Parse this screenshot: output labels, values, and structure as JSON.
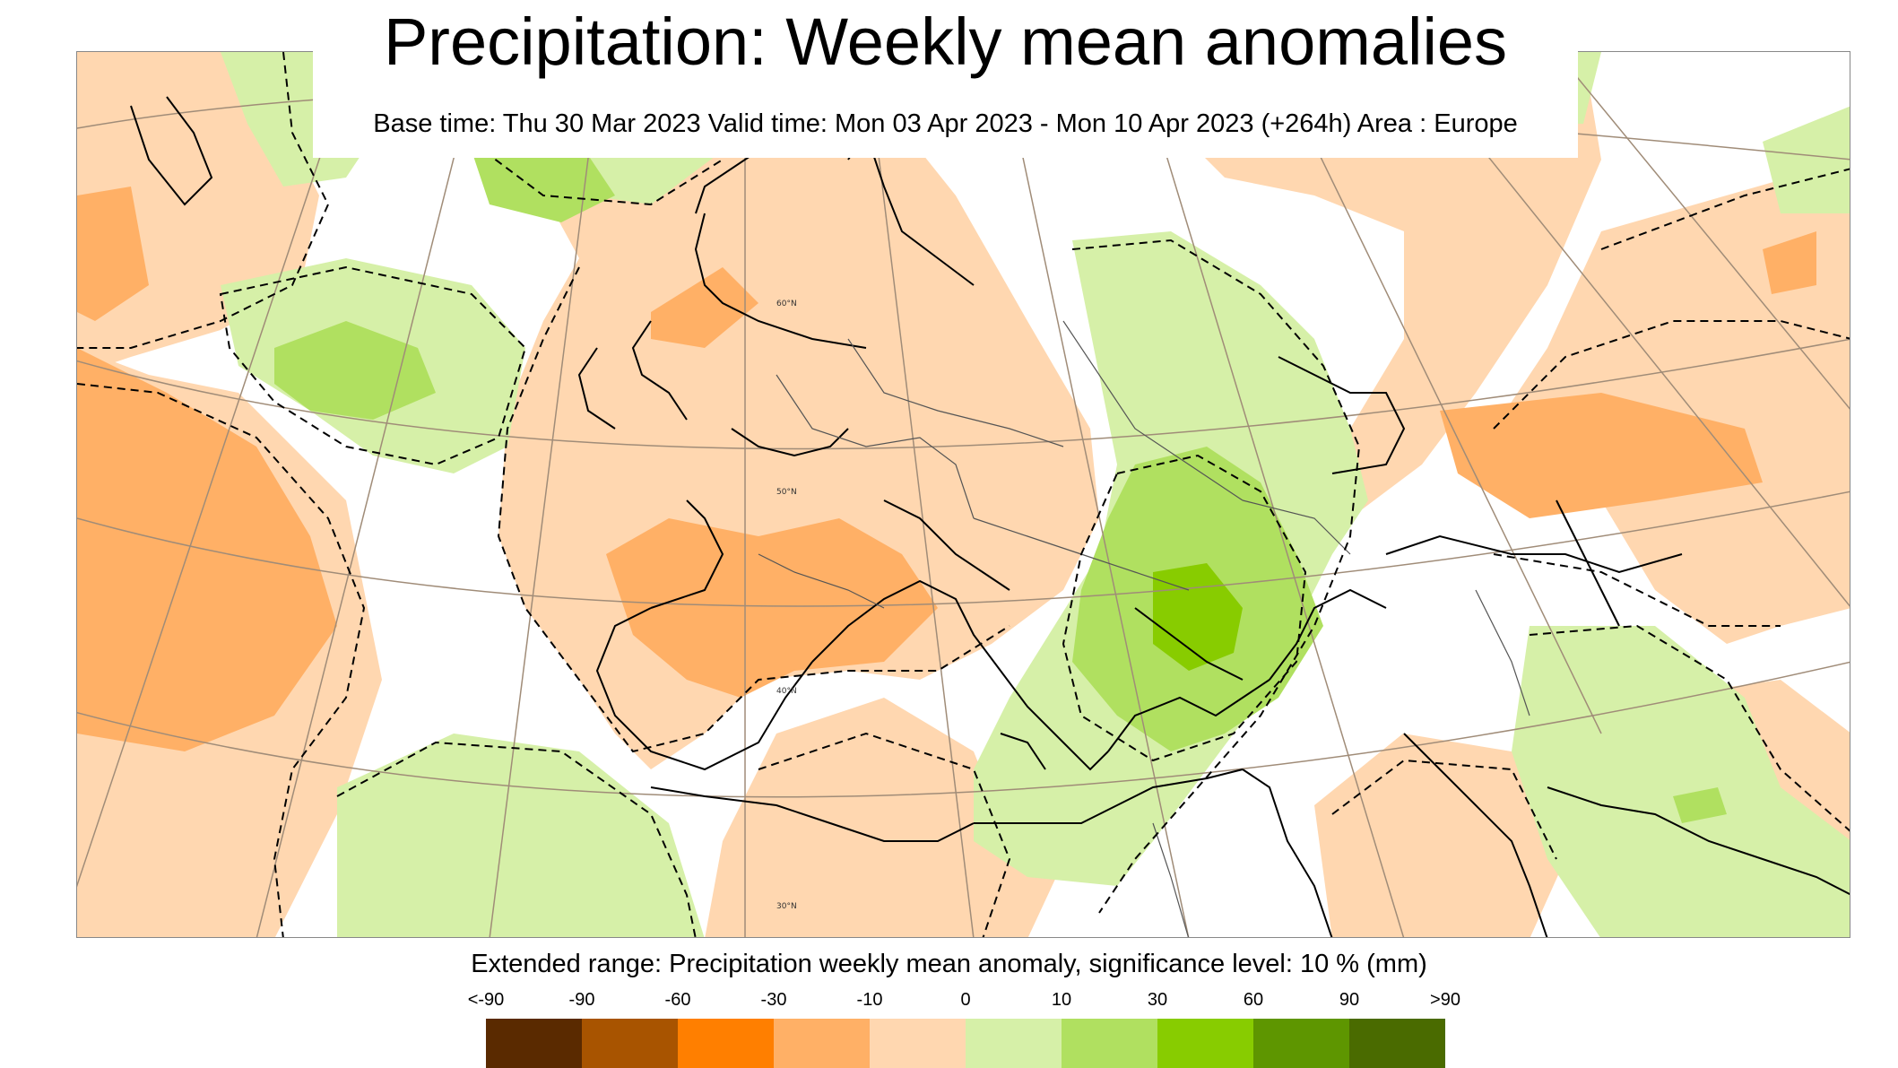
{
  "title": "Precipitation: Weekly mean anomalies",
  "subtitle": "Base time: Thu 30 Mar 2023 Valid time: Mon 03 Apr 2023 - Mon 10 Apr 2023 (+264h) Area : Europe",
  "legend": {
    "title": "Extended range: Precipitation weekly mean anomaly, significance level: 10 % (mm)",
    "labels": [
      "<-90",
      "-90",
      "-60",
      "-30",
      "-10",
      "0",
      "10",
      "30",
      "60",
      "90",
      ">90"
    ],
    "colors": [
      "#5a2a00",
      "#a85400",
      "#ff7f00",
      "#ffb066",
      "#ffd7b0",
      "#d6f0a8",
      "#b0e060",
      "#88cc00",
      "#5e9600",
      "#4a6b00"
    ]
  },
  "map": {
    "lat_labels": [
      "60°N",
      "50°N",
      "40°N",
      "30°N"
    ],
    "colors": {
      "dry_light": "#ffd7b0",
      "dry_mid": "#ffb066",
      "wet_light": "#d6f0a8",
      "wet_mid": "#b0e060",
      "wet_strong": "#88cc00",
      "coast": "#000000",
      "border": "#555555",
      "graticule": "#a08c78"
    }
  }
}
